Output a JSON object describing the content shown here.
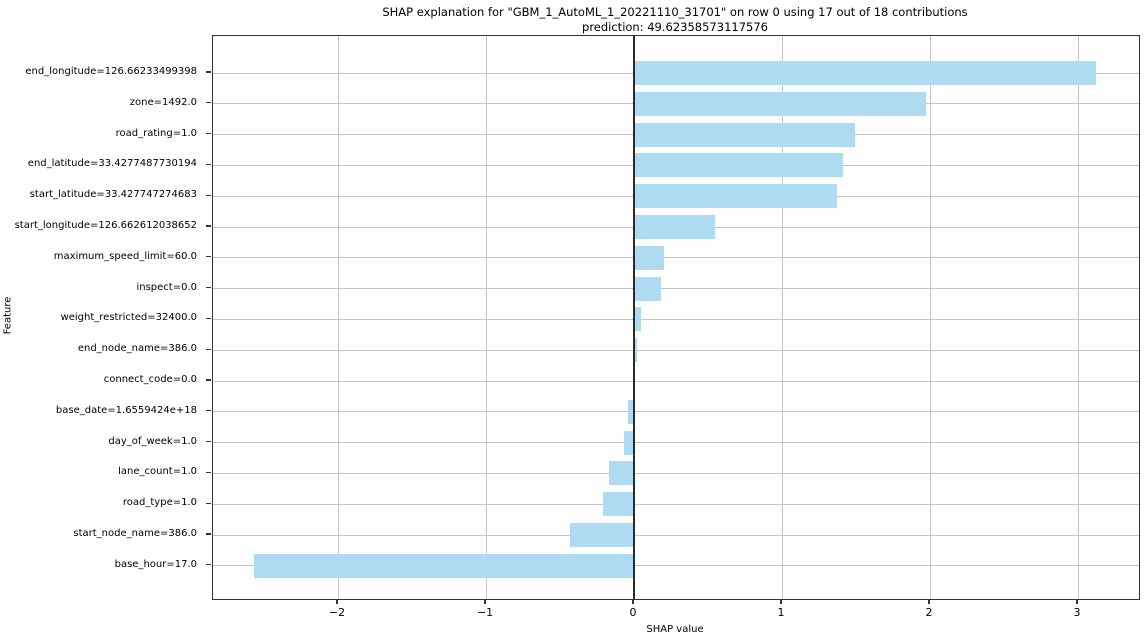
{
  "chart_data": {
    "type": "bar",
    "orientation": "horizontal",
    "title": "SHAP explanation for \"GBM_1_AutoML_1_20221110_31701\" on row 0 using 17 out of 18 contributions",
    "subtitle": "prediction: 49.62358573117576",
    "xlabel": "SHAP value",
    "ylabel": "Feature",
    "xlim": [
      -2.845,
      3.412
    ],
    "xticks": [
      -2,
      -1,
      0,
      1,
      2,
      3
    ],
    "grid": true,
    "legend": false,
    "bar_color": "#aedaf2",
    "zero_line_color": "#2b2b2b",
    "categories": [
      "end_longitude=126.66233499398",
      "zone=1492.0",
      "road_rating=1.0",
      "end_latitude=33.4277487730194",
      "start_latitude=33.427747274683",
      "start_longitude=126.662612038652",
      "maximum_speed_limit=60.0",
      "inspect=0.0",
      "weight_restricted=32400.0",
      "end_node_name=386.0",
      "connect_code=0.0",
      "base_date=1.6559424e+18",
      "day_of_week=1.0",
      "lane_count=1.0",
      "road_type=1.0",
      "start_node_name=386.0",
      "base_hour=17.0"
    ],
    "values": [
      3.12,
      1.97,
      1.49,
      1.41,
      1.37,
      0.55,
      0.2,
      0.18,
      0.05,
      0.02,
      0.0,
      -0.04,
      -0.07,
      -0.17,
      -0.21,
      -0.43,
      -2.57
    ]
  }
}
